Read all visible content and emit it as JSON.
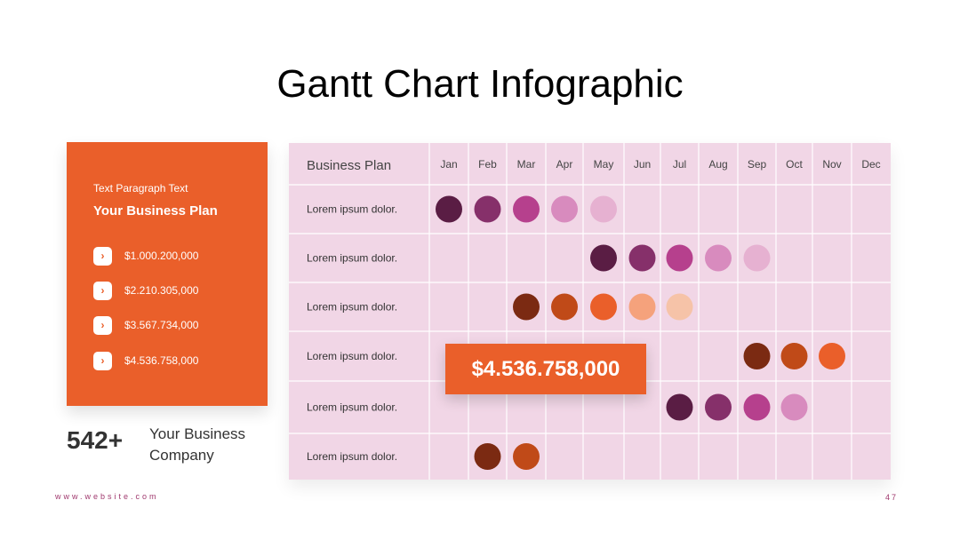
{
  "title": "Gantt Chart Infographic",
  "side_card": {
    "eyebrow": "Text Paragraph Text",
    "heading": "Your Business Plan",
    "icon": "chevron-right-icon",
    "amounts": [
      "$1.000.200,000",
      "$2.210.305,000",
      "$3.567.734,000",
      "$4.536.758,000"
    ]
  },
  "stat": {
    "value": "542+",
    "label": "Your Business Company"
  },
  "footer": {
    "website": "www.website.com",
    "page_number": "47"
  },
  "callout": {
    "value": "$4.536.758,000"
  },
  "colors": {
    "accent": "#ea5f2a",
    "grid_bg": "#f1d6e6",
    "footer": "#a0396e"
  },
  "chart_data": {
    "type": "table",
    "header_label": "Business Plan",
    "months": [
      "Jan",
      "Feb",
      "Mar",
      "Apr",
      "May",
      "Jun",
      "Jul",
      "Aug",
      "Sep",
      "Oct",
      "Nov",
      "Dec"
    ],
    "rows": [
      {
        "label": "Lorem ipsum dolor.",
        "start": "Jan",
        "dots": [
          "#5a1d44",
          "#86306a",
          "#b6408d",
          "#d88bbe",
          "#e6b1d1"
        ]
      },
      {
        "label": "Lorem ipsum dolor.",
        "start": "May",
        "dots": [
          "#5a1d44",
          "#86306a",
          "#b6408d",
          "#d88bbe",
          "#e6b1d1"
        ]
      },
      {
        "label": "Lorem ipsum dolor.",
        "start": "Mar",
        "dots": [
          "#7b2a12",
          "#c04a18",
          "#ea5f2a",
          "#f5a27c",
          "#f6c3a8"
        ]
      },
      {
        "label": "Lorem ipsum dolor.",
        "start": "Sep",
        "dots": [
          "#7b2a12",
          "#c04a18",
          "#ea5f2a"
        ]
      },
      {
        "label": "Lorem ipsum dolor.",
        "start": "Jul",
        "dots": [
          "#5a1d44",
          "#86306a",
          "#b6408d",
          "#d88bbe"
        ]
      },
      {
        "label": "Lorem ipsum dolor.",
        "start": "Feb",
        "dots": [
          "#7b2a12",
          "#c04a18"
        ]
      }
    ]
  }
}
